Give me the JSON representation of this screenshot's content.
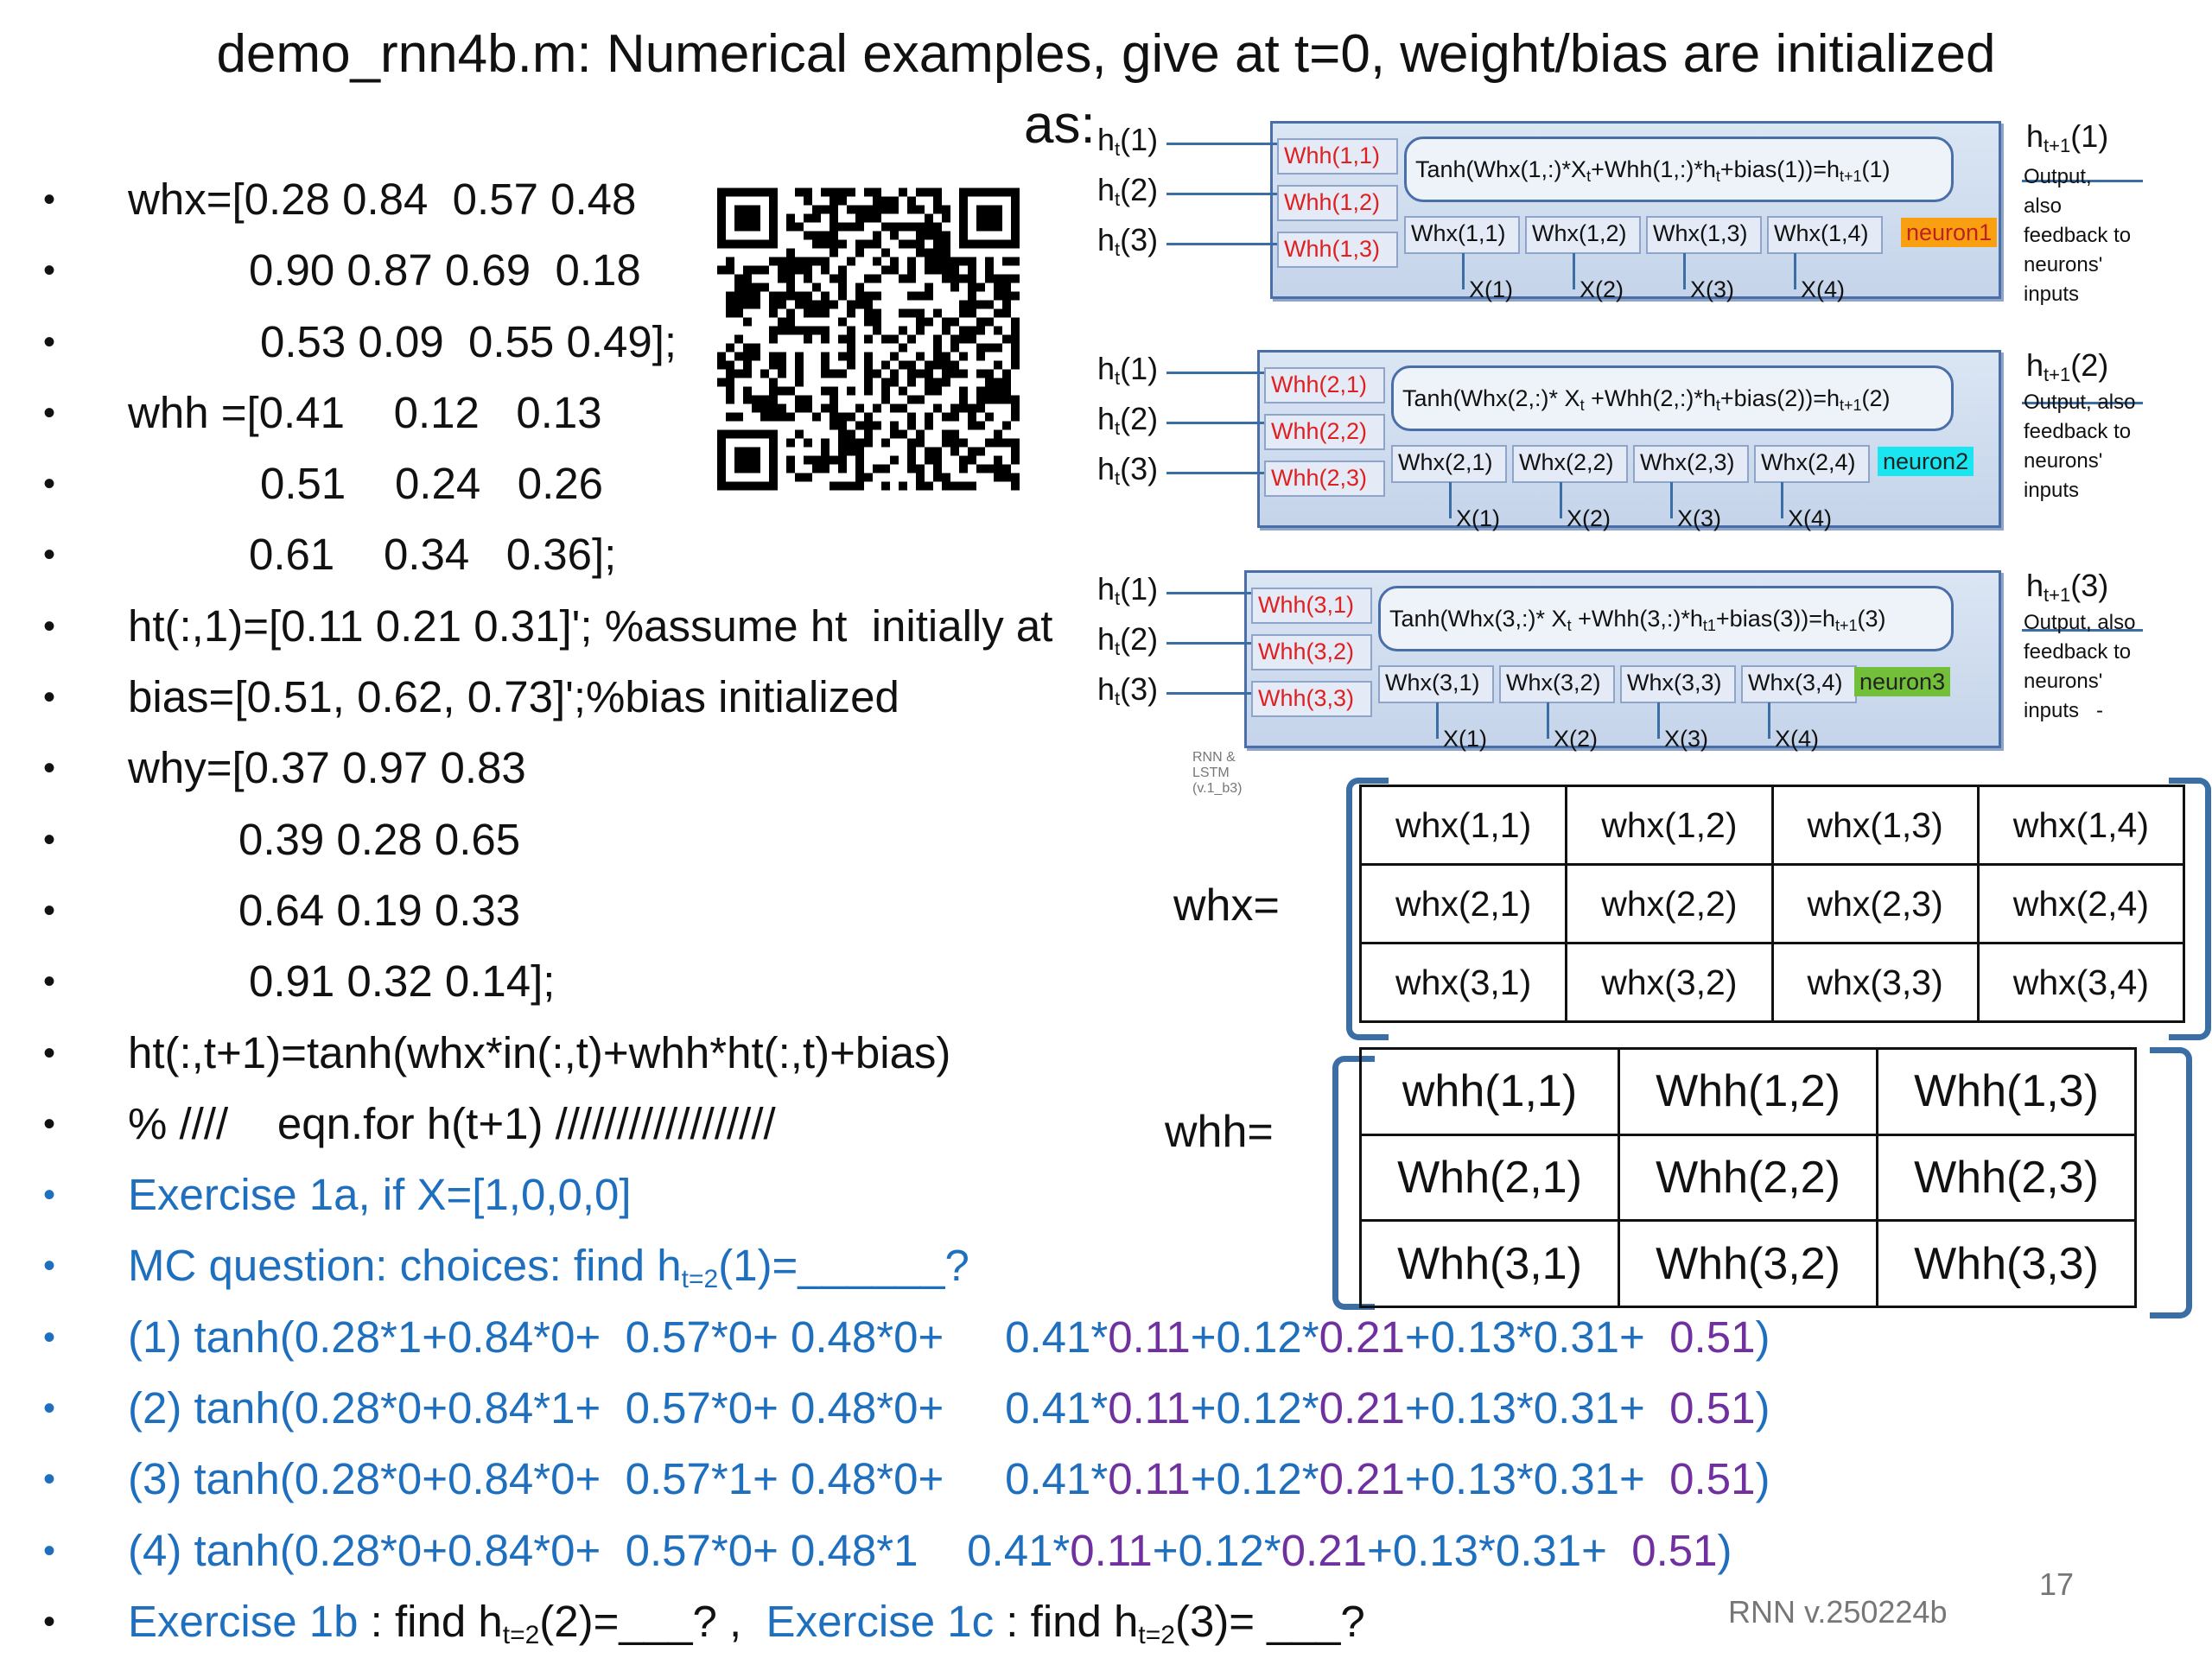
{
  "title": "demo_rnn4b.m: Numerical examples, give at t=0, weight/bias are initialized",
  "title_tail": "as:",
  "bullets": [
    {
      "text": "whx=[0.28 0.84  0.57 0.48",
      "indent": 0
    },
    {
      "text": "0.90 0.87 0.69  0.18",
      "indent": 140
    },
    {
      "text": "0.53 0.09  0.55 0.49];",
      "indent": 153
    },
    {
      "text": "whh =[0.41    0.12   0.13",
      "indent": 0
    },
    {
      "text": "0.51    0.24   0.26",
      "indent": 153
    },
    {
      "text": "0.61    0.34   0.36];",
      "indent": 140
    },
    {
      "text": "ht(:,1)=[0.11 0.21 0.31]'; %assume ht  initially at",
      "indent": 0
    },
    {
      "text": "bias=[0.51, 0.62, 0.73]';%bias initialized",
      "indent": 0
    },
    {
      "text": "why=[0.37 0.97 0.83",
      "indent": 0
    },
    {
      "text": "0.39 0.28 0.65",
      "indent": 128
    },
    {
      "text": "0.64 0.19 0.33",
      "indent": 128
    },
    {
      "text": "0.91 0.32 0.14];",
      "indent": 140
    },
    {
      "text": "ht(:,t+1)=tanh(whx*in(:,t)+whh*ht(:,t)+bias)",
      "indent": 0
    },
    {
      "text": "% ////    eqn.for h(t+1) //////////////////",
      "indent": 0
    }
  ],
  "exercise_1a": "Exercise 1a, if X=[1,0,0,0]",
  "mc_question": {
    "prefix": "MC question: choices: find h",
    "sub": "t=2",
    "suffix": "(1)=______?"
  },
  "choices": [
    {
      "a": "(1) tanh(0.28*1+0.84*0+  0.57*0+ 0.48*0+     0.41*",
      "b": "0.11",
      "c": "+0.12*",
      "d": "0.21",
      "e": "+0.13*0.31+  ",
      "f": "0.51",
      "g": ")"
    },
    {
      "a": "(2) tanh(0.28*0+0.84*1+  0.57*0+ 0.48*0+     0.41*",
      "b": "0.11",
      "c": "+0.12*",
      "d": "0.21",
      "e": "+0.13*0.31+  ",
      "f": "0.51",
      "g": ")"
    },
    {
      "a": "(3) tanh(0.28*0+0.84*0+  0.57*1+ 0.48*0+     0.41*",
      "b": "0.11",
      "c": "+0.12*",
      "d": "0.21",
      "e": "+0.13*0.31+  ",
      "f": "0.51",
      "g": ")"
    },
    {
      "a": "(4) tanh(0.28*0+0.84*0+  0.57*0+ 0.48*1    0.41*",
      "b": "0.11",
      "c": "+0.12*",
      "d": "0.21",
      "e": "+0.13*0.31+  ",
      "f": "0.51",
      "g": ")"
    }
  ],
  "last_line": {
    "ex1b": "Exercise 1b",
    "t1": " : find h",
    "sub1": "t=2",
    "t2": "(2)=___? ,  ",
    "ex1c": "Exercise 1c",
    "t3": " : find h",
    "sub2": "t=2",
    "t4": "(3)= ___?"
  },
  "qr_icon": "qr-code-icon",
  "diagram": {
    "neurons": [
      {
        "whh": [
          "Whh(1,1)",
          "Whh(1,2)",
          "Whh(1,3)"
        ],
        "eq": "Tanh(Whx(1,:)*X",
        "eq_sub1": "t",
        "eq_mid": "+Whh(1,:)*h",
        "eq_sub2": "t",
        "eq_tail": "+bias(1))=h",
        "eq_sub3": "t+1",
        "eq_end": "(1)",
        "whx": [
          "Whx(1,1)",
          "Whx(1,2)",
          "Whx(1,3)",
          "Whx(1,4)"
        ],
        "name": "neuron1",
        "color": "#f8a012",
        "inputs": [
          "h",
          "h",
          "h"
        ],
        "input_sub": "t",
        "input_idx": [
          "(1)",
          "(2)",
          "(3)"
        ],
        "out": "h",
        "out_sub": "t+1",
        "out_idx": "(1)",
        "side": "Output,\nalso\nfeedback to\nneurons'\ninputs",
        "x": [
          "X(1)",
          "X(2)",
          "X(3)",
          "X(4)"
        ]
      },
      {
        "whh": [
          "Whh(2,1)",
          "Whh(2,2)",
          "Whh(2,3)"
        ],
        "eq": "Tanh(Whx(2,:)* X",
        "eq_sub1": "t",
        "eq_mid": " +Whh(2,:)*h",
        "eq_sub2": "t",
        "eq_tail": "+bias(2))=h",
        "eq_sub3": "t+1",
        "eq_end": "(2)",
        "whx": [
          "Whx(2,1)",
          "Whx(2,2)",
          "Whx(2,3)",
          "Whx(2,4)"
        ],
        "name": "neuron2",
        "color": "#19e6f0",
        "inputs": [
          "h",
          "h",
          "h"
        ],
        "input_sub": "t",
        "input_idx": [
          "(1)",
          "(2)",
          "(3)"
        ],
        "out": "h",
        "out_sub": "t+1",
        "out_idx": "(2)",
        "side": "Output, also\nfeedback to\nneurons'\ninputs",
        "x": [
          "X(1)",
          "X(2)",
          "X(3)",
          "X(4)"
        ]
      },
      {
        "whh": [
          "Whh(3,1)",
          "Whh(3,2)",
          "Whh(3,3)"
        ],
        "eq": "Tanh(Whx(3,:)* X",
        "eq_sub1": "t",
        "eq_mid": " +Whh(3,:)*h",
        "eq_sub2": "t1",
        "eq_tail": "+bias(3))=h",
        "eq_sub3": "t+1",
        "eq_end": "(3)",
        "whx": [
          "Whx(3,1)",
          "Whx(3,2)",
          "Whx(3,3)",
          "Whx(3,4)"
        ],
        "name": "neuron3",
        "color": "#72bf3a",
        "inputs": [
          "h",
          "h",
          "h"
        ],
        "input_sub": "t",
        "input_idx": [
          "(1)",
          "(2)",
          "(3)"
        ],
        "out": "h",
        "out_sub": "t+1",
        "out_idx": "(3)",
        "side": "Output, also\nfeedback to\nneurons'\ninputs   -",
        "x": [
          "X(1)",
          "X(2)",
          "X(3)",
          "X(4)"
        ]
      }
    ],
    "caption": "RNN & LSTM (v.1_b3)"
  },
  "whx_matrix": {
    "label": "whx=",
    "rows": [
      [
        "whx(1,1)",
        "whx(1,2)",
        "whx(1,3)",
        "whx(1,4)"
      ],
      [
        "whx(2,1)",
        "whx(2,2)",
        "whx(2,3)",
        "whx(2,4)"
      ],
      [
        "whx(3,1)",
        "whx(3,2)",
        "whx(3,3)",
        "whx(3,4)"
      ]
    ]
  },
  "whh_matrix": {
    "label": "whh=",
    "rows": [
      [
        "whh(1,1)",
        "Whh(1,2)",
        "Whh(1,3)"
      ],
      [
        "Whh(2,1)",
        "Whh(2,2)",
        "Whh(2,3)"
      ],
      [
        "Whh(3,1)",
        "Whh(3,2)",
        "Whh(3,3)"
      ]
    ]
  },
  "slide_number": "17",
  "version": "RNN v.250224b",
  "colors": {
    "blue": "#1f6fbf",
    "purple": "#7030a0",
    "bracket": "#3a6ea5",
    "red": "#e02020"
  }
}
